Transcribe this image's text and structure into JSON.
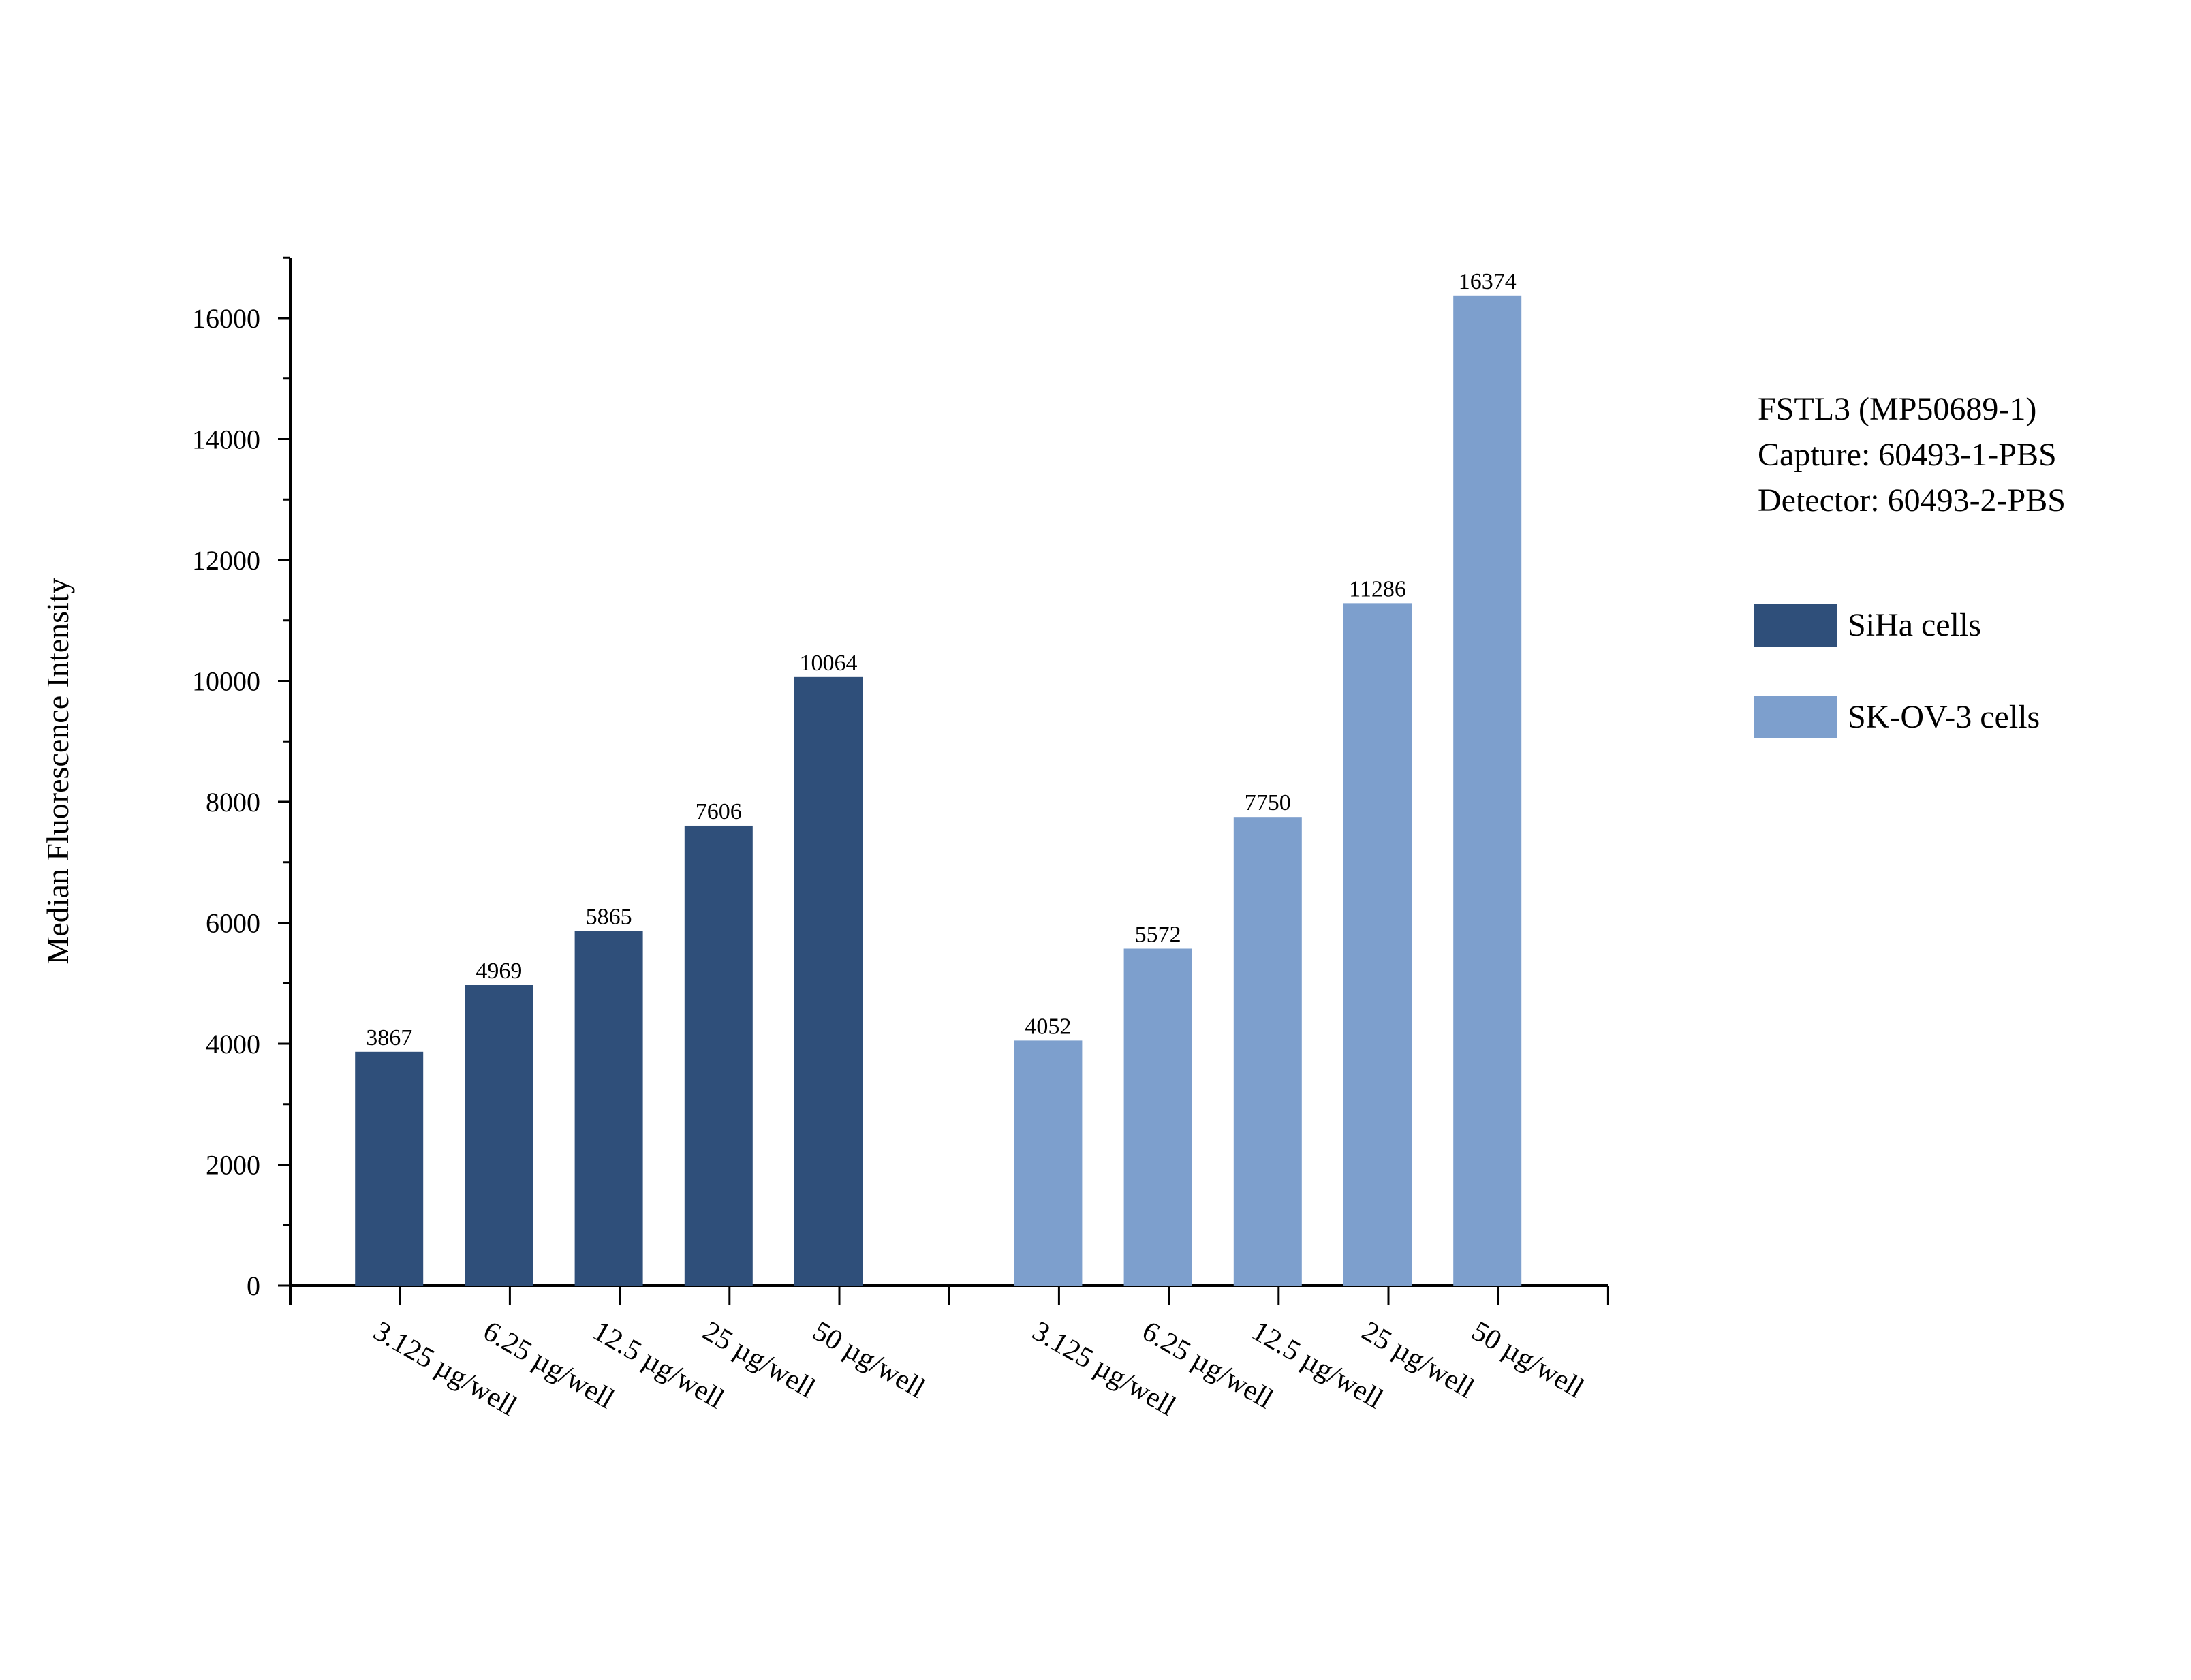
{
  "chart_data": {
    "type": "bar",
    "xlabel": "",
    "ylabel": "Median Fluorescence Intensity",
    "ylim": [
      0,
      17000
    ],
    "y_ticks": [
      0,
      2000,
      4000,
      6000,
      8000,
      10000,
      12000,
      14000,
      16000
    ],
    "grid": false,
    "legend_position": "right",
    "info_lines": [
      "FSTL3 (MP50689-1)",
      "Capture: 60493-1-PBS",
      "Detector: 60493-2-PBS"
    ],
    "series": [
      {
        "name": "SiHa cells",
        "color": "#2f4f7a",
        "categories": [
          "3.125 µg/well",
          "6.25 µg/well",
          "12.5 µg/well",
          "25 µg/well",
          "50 µg/well"
        ],
        "values": [
          3867,
          4969,
          5865,
          7606,
          10064
        ]
      },
      {
        "name": "SK-OV-3 cells",
        "color": "#7d9fcd",
        "categories": [
          "3.125 µg/well",
          "6.25 µg/well",
          "12.5 µg/well",
          "25 µg/well",
          "50 µg/well"
        ],
        "values": [
          4052,
          5572,
          7750,
          11286,
          16374
        ]
      }
    ]
  }
}
